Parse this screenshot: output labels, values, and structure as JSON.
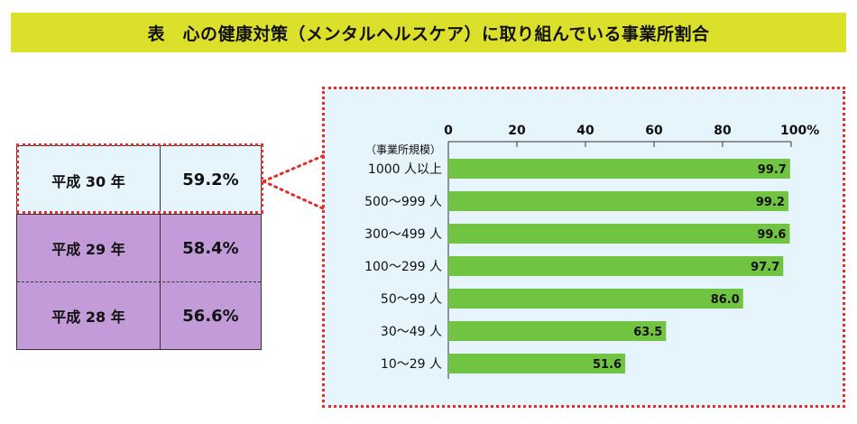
{
  "title": "表　心の健康対策（メンタルヘルスケア）に取り組んでいる事業所割合",
  "year_table": [
    {
      "label": "平成 30 年",
      "value": "59.2%",
      "highlighted": true
    },
    {
      "label": "平成 29 年",
      "value": "58.4%",
      "highlighted": false
    },
    {
      "label": "平成 28 年",
      "value": "56.6%",
      "highlighted": false
    }
  ],
  "colors": {
    "title_bg": "#dbe12b",
    "bar": "#70c442",
    "highlight_border": "#e0302c",
    "current_row_bg": "#e6f4fb",
    "past_row_bg": "#c29bd8"
  },
  "chart_data": {
    "type": "bar",
    "orientation": "horizontal",
    "category_axis_label": "（事業所規模）",
    "categories": [
      "1000 人以上",
      "500～999 人",
      "300～499 人",
      "100～299 人",
      "50～99 人",
      "30～49 人",
      "10～29 人"
    ],
    "values": [
      99.7,
      99.2,
      99.6,
      97.7,
      86.0,
      63.5,
      51.6
    ],
    "value_labels": [
      "99.7",
      "99.2",
      "99.6",
      "97.7",
      "86.0",
      "63.5",
      "51.6"
    ],
    "xlim": [
      0,
      100
    ],
    "x_ticks": [
      0,
      20,
      40,
      60,
      80,
      100
    ],
    "x_tick_labels": [
      "0",
      "20",
      "40",
      "60",
      "80",
      "100%"
    ],
    "axis_position": "top",
    "grid": false
  }
}
